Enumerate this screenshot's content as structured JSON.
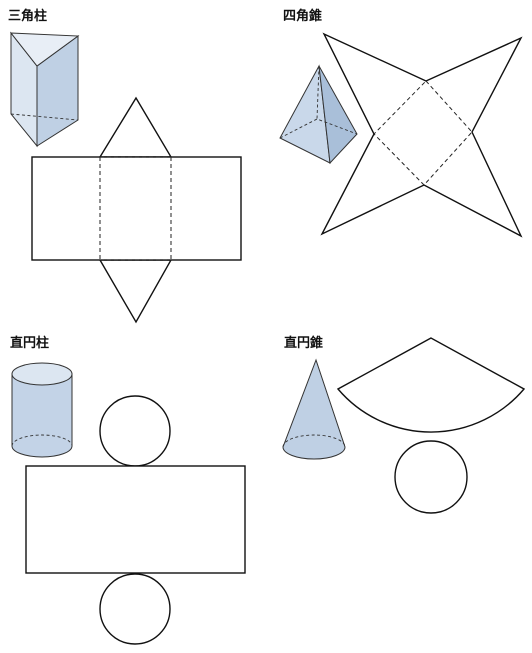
{
  "labels": {
    "triangular_prism": "三角柱",
    "square_pyramid": "四角錐",
    "cylinder": "直円柱",
    "cone": "直円錐"
  },
  "colors": {
    "solid_fill_light": "#dce6f1",
    "solid_fill_mid": "#bfd0e4",
    "solid_fill_dark": "#a9bfd9",
    "line": "#111111"
  }
}
